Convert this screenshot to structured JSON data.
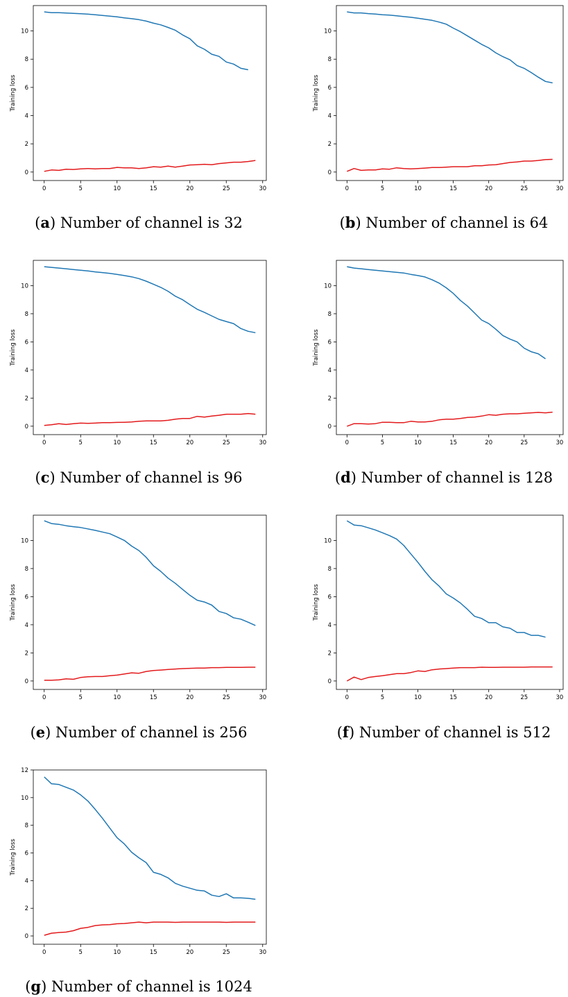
{
  "colors": {
    "blue": "#1f77b4",
    "red": "#e31a1c"
  },
  "chart_data": [
    {
      "type": "line",
      "letter": "a",
      "caption": "Number of channel is 32",
      "ylabel": "Training loss",
      "xlim": [
        -1.5,
        30.5
      ],
      "ylim": [
        -0.6,
        11.8
      ],
      "xticks": [
        0,
        5,
        10,
        15,
        20,
        25,
        30
      ],
      "yticks": [
        0,
        2,
        4,
        6,
        8,
        10
      ],
      "series": [
        {
          "color": "blue",
          "values": [
            11.35,
            11.3,
            11.3,
            11.27,
            11.25,
            11.22,
            11.19,
            11.15,
            11.1,
            11.05,
            11.0,
            10.93,
            10.87,
            10.8,
            10.7,
            10.55,
            10.43,
            10.25,
            10.05,
            9.72,
            9.45,
            8.95,
            8.7,
            8.35,
            8.2,
            7.8,
            7.65,
            7.35,
            7.25
          ]
        },
        {
          "color": "red",
          "values": [
            0.05,
            0.15,
            0.12,
            0.2,
            0.18,
            0.22,
            0.25,
            0.22,
            0.25,
            0.25,
            0.33,
            0.3,
            0.3,
            0.25,
            0.3,
            0.38,
            0.35,
            0.42,
            0.35,
            0.42,
            0.5,
            0.52,
            0.55,
            0.52,
            0.6,
            0.65,
            0.7,
            0.7,
            0.75,
            0.82
          ]
        }
      ]
    },
    {
      "type": "line",
      "letter": "b",
      "caption": "Number of channel is 64",
      "ylabel": "Training loss",
      "xlim": [
        -1.5,
        30.5
      ],
      "ylim": [
        -0.6,
        11.8
      ],
      "xticks": [
        0,
        5,
        10,
        15,
        20,
        25,
        30
      ],
      "yticks": [
        0,
        2,
        4,
        6,
        8,
        10
      ],
      "series": [
        {
          "color": "blue",
          "values": [
            11.35,
            11.28,
            11.28,
            11.23,
            11.2,
            11.15,
            11.12,
            11.07,
            11.02,
            10.97,
            10.9,
            10.83,
            10.75,
            10.63,
            10.48,
            10.2,
            9.95,
            9.65,
            9.35,
            9.05,
            8.8,
            8.45,
            8.18,
            7.95,
            7.55,
            7.35,
            7.05,
            6.72,
            6.42,
            6.32
          ]
        },
        {
          "color": "red",
          "values": [
            0.05,
            0.25,
            0.12,
            0.15,
            0.15,
            0.22,
            0.2,
            0.3,
            0.25,
            0.22,
            0.25,
            0.28,
            0.32,
            0.32,
            0.35,
            0.38,
            0.38,
            0.38,
            0.45,
            0.45,
            0.5,
            0.52,
            0.6,
            0.68,
            0.72,
            0.78,
            0.78,
            0.82,
            0.88,
            0.9
          ]
        }
      ]
    },
    {
      "type": "line",
      "letter": "c",
      "caption": "Number of channel is 96",
      "ylabel": "Training loss",
      "xlim": [
        -1.5,
        30.5
      ],
      "ylim": [
        -0.6,
        11.8
      ],
      "xticks": [
        0,
        5,
        10,
        15,
        20,
        25,
        30
      ],
      "yticks": [
        0,
        2,
        4,
        6,
        8,
        10
      ],
      "series": [
        {
          "color": "blue",
          "values": [
            11.35,
            11.3,
            11.25,
            11.2,
            11.15,
            11.1,
            11.05,
            10.98,
            10.93,
            10.87,
            10.8,
            10.72,
            10.63,
            10.5,
            10.32,
            10.1,
            9.88,
            9.6,
            9.25,
            9.0,
            8.65,
            8.32,
            8.1,
            7.85,
            7.6,
            7.45,
            7.3,
            6.95,
            6.75,
            6.65
          ]
        },
        {
          "color": "red",
          "values": [
            0.05,
            0.1,
            0.18,
            0.12,
            0.18,
            0.22,
            0.2,
            0.22,
            0.25,
            0.25,
            0.27,
            0.28,
            0.3,
            0.35,
            0.38,
            0.38,
            0.38,
            0.42,
            0.5,
            0.55,
            0.55,
            0.7,
            0.65,
            0.72,
            0.78,
            0.85,
            0.85,
            0.85,
            0.9,
            0.85
          ]
        }
      ]
    },
    {
      "type": "line",
      "letter": "d",
      "caption": "Number of channel is 128",
      "ylabel": "Training loss",
      "xlim": [
        -1.5,
        30.5
      ],
      "ylim": [
        -0.6,
        11.8
      ],
      "xticks": [
        0,
        5,
        10,
        15,
        20,
        25,
        30
      ],
      "yticks": [
        0,
        2,
        4,
        6,
        8,
        10
      ],
      "series": [
        {
          "color": "blue",
          "values": [
            11.35,
            11.25,
            11.2,
            11.15,
            11.1,
            11.05,
            11.0,
            10.95,
            10.9,
            10.8,
            10.72,
            10.62,
            10.42,
            10.18,
            9.85,
            9.45,
            8.95,
            8.55,
            8.05,
            7.55,
            7.3,
            6.9,
            6.45,
            6.2,
            6.0,
            5.55,
            5.3,
            5.15,
            4.8
          ]
        },
        {
          "color": "red",
          "values": [
            0.0,
            0.18,
            0.18,
            0.15,
            0.18,
            0.28,
            0.28,
            0.25,
            0.25,
            0.35,
            0.3,
            0.3,
            0.35,
            0.45,
            0.5,
            0.5,
            0.55,
            0.62,
            0.65,
            0.72,
            0.82,
            0.78,
            0.85,
            0.88,
            0.88,
            0.92,
            0.95,
            0.98,
            0.95,
            1.0
          ]
        }
      ]
    },
    {
      "type": "line",
      "letter": "e",
      "caption": "Number of channel is 256",
      "ylabel": "Training loss",
      "xlim": [
        -1.5,
        30.5
      ],
      "ylim": [
        -0.6,
        11.8
      ],
      "xticks": [
        0,
        5,
        10,
        15,
        20,
        25,
        30
      ],
      "yticks": [
        0,
        2,
        4,
        6,
        8,
        10
      ],
      "series": [
        {
          "color": "blue",
          "values": [
            11.4,
            11.2,
            11.15,
            11.05,
            10.98,
            10.92,
            10.82,
            10.72,
            10.6,
            10.48,
            10.25,
            10.0,
            9.6,
            9.28,
            8.8,
            8.2,
            7.8,
            7.32,
            6.95,
            6.52,
            6.1,
            5.75,
            5.62,
            5.4,
            4.95,
            4.8,
            4.5,
            4.4,
            4.18,
            3.95
          ]
        },
        {
          "color": "red",
          "values": [
            0.05,
            0.05,
            0.08,
            0.15,
            0.12,
            0.25,
            0.3,
            0.32,
            0.32,
            0.38,
            0.42,
            0.5,
            0.58,
            0.55,
            0.68,
            0.75,
            0.78,
            0.82,
            0.85,
            0.88,
            0.9,
            0.92,
            0.92,
            0.95,
            0.95,
            0.97,
            0.97,
            0.97,
            0.98,
            0.98
          ]
        }
      ]
    },
    {
      "type": "line",
      "letter": "f",
      "caption": "Number of channel is 512",
      "ylabel": "Training loss",
      "xlim": [
        -1.5,
        30.5
      ],
      "ylim": [
        -0.6,
        11.8
      ],
      "xticks": [
        0,
        5,
        10,
        15,
        20,
        25,
        30
      ],
      "yticks": [
        0,
        2,
        4,
        6,
        8,
        10
      ],
      "series": [
        {
          "color": "blue",
          "values": [
            11.4,
            11.1,
            11.05,
            10.9,
            10.75,
            10.55,
            10.35,
            10.1,
            9.65,
            9.05,
            8.45,
            7.8,
            7.2,
            6.75,
            6.2,
            5.9,
            5.55,
            5.1,
            4.6,
            4.45,
            4.15,
            4.15,
            3.85,
            3.75,
            3.45,
            3.45,
            3.25,
            3.25,
            3.12
          ]
        },
        {
          "color": "red",
          "values": [
            0.0,
            0.28,
            0.1,
            0.25,
            0.32,
            0.38,
            0.45,
            0.52,
            0.52,
            0.6,
            0.72,
            0.68,
            0.8,
            0.85,
            0.88,
            0.92,
            0.95,
            0.95,
            0.95,
            0.98,
            0.97,
            0.97,
            0.98,
            0.98,
            0.98,
            0.98,
            1.0,
            1.0,
            1.0,
            1.0
          ]
        }
      ]
    },
    {
      "type": "line",
      "letter": "g",
      "caption": "Number of channel is 1024",
      "ylabel": "Training loss",
      "xlim": [
        -1.5,
        30.5
      ],
      "ylim": [
        -0.6,
        12.0
      ],
      "xticks": [
        0,
        5,
        10,
        15,
        20,
        25,
        30
      ],
      "yticks": [
        0,
        2,
        4,
        6,
        8,
        10,
        12
      ],
      "series": [
        {
          "color": "blue",
          "values": [
            11.5,
            11.0,
            10.95,
            10.75,
            10.55,
            10.2,
            9.75,
            9.15,
            8.5,
            7.8,
            7.1,
            6.65,
            6.05,
            5.65,
            5.3,
            4.6,
            4.45,
            4.2,
            3.8,
            3.6,
            3.45,
            3.3,
            3.25,
            2.95,
            2.85,
            3.05,
            2.75,
            2.75,
            2.72,
            2.65
          ]
        },
        {
          "color": "red",
          "values": [
            0.05,
            0.2,
            0.25,
            0.28,
            0.38,
            0.55,
            0.62,
            0.75,
            0.8,
            0.82,
            0.88,
            0.9,
            0.95,
            1.0,
            0.95,
            1.0,
            1.0,
            1.0,
            0.98,
            1.0,
            1.0,
            1.0,
            1.0,
            1.0,
            1.0,
            0.98,
            1.0,
            1.0,
            1.0,
            1.0
          ]
        }
      ]
    }
  ]
}
